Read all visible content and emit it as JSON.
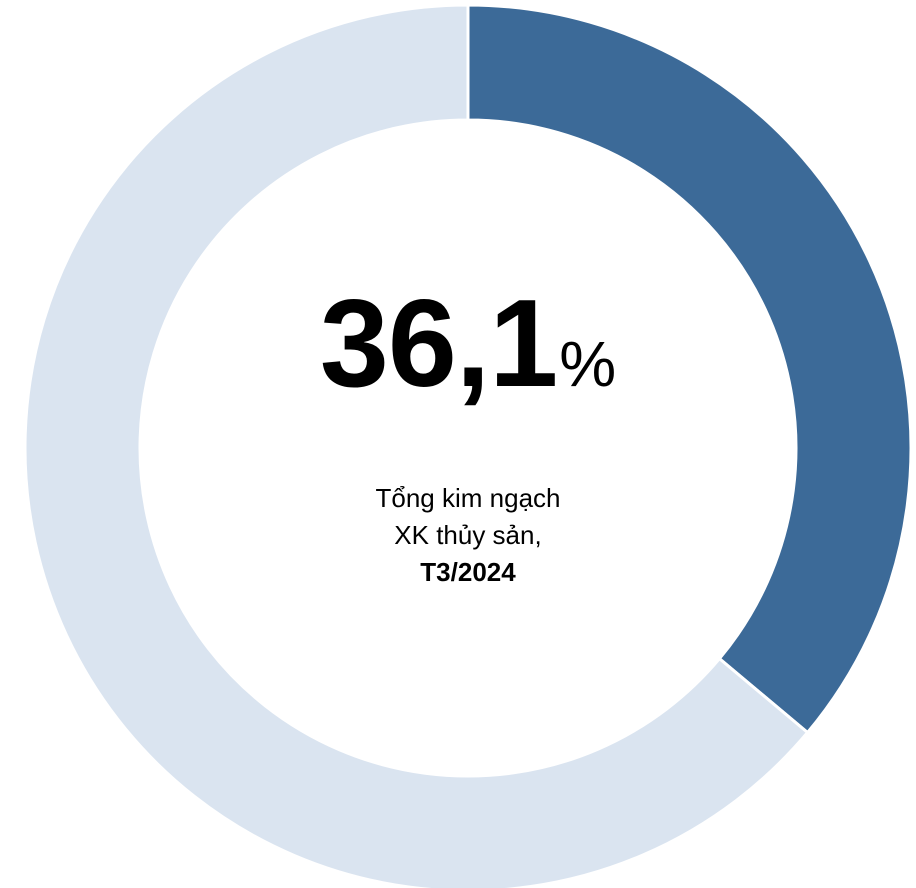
{
  "chart_data": {
    "type": "pie",
    "variant": "donut",
    "slices": [
      {
        "value": 36.1,
        "color": "#3C6A98"
      },
      {
        "value": 63.9,
        "color": "#DAE4F0"
      }
    ],
    "start": "12 o'clock, clockwise",
    "center_label": {
      "value": "36,1",
      "unit": "%",
      "caption_line1": "Tổng kim ngạch",
      "caption_line2": "XK thủy sản,",
      "caption_line3": "T3/2024"
    }
  }
}
